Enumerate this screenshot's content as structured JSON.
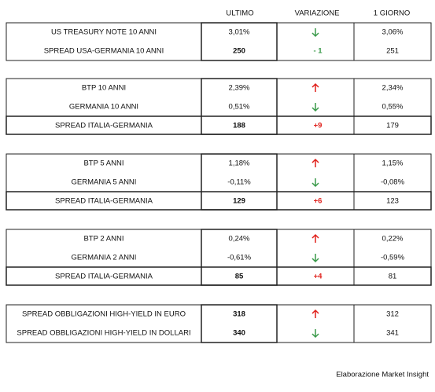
{
  "header": {
    "ultimo": "ULTIMO",
    "variazione": "VARIAZIONE",
    "giorno": "1 GIORNO"
  },
  "groups": [
    {
      "rows": [
        {
          "label": "US TREASURY NOTE 10 ANNI",
          "ultimo": "3,01%",
          "giorno": "3,06%"
        },
        {
          "label": "SPREAD USA-GERMANIA 10 ANNI",
          "ultimo": "250",
          "variazione": "- 1",
          "giorno": "251"
        }
      ]
    },
    {
      "rows": [
        {
          "label": "BTP 10 ANNI",
          "ultimo": "2,39%",
          "giorno": "2,34%"
        },
        {
          "label": "GERMANIA 10 ANNI",
          "ultimo": "0,51%",
          "giorno": "0,55%"
        },
        {
          "label": "SPREAD ITALIA-GERMANIA",
          "ultimo": "188",
          "variazione": "+9",
          "giorno": "179"
        }
      ]
    },
    {
      "rows": [
        {
          "label": "BTP 5 ANNI",
          "ultimo": "1,18%",
          "giorno": "1,15%"
        },
        {
          "label": "GERMANIA 5 ANNI",
          "ultimo": "-0,11%",
          "giorno": "-0,08%"
        },
        {
          "label": "SPREAD ITALIA-GERMANIA",
          "ultimo": "129",
          "variazione": "+6",
          "giorno": "123"
        }
      ]
    },
    {
      "rows": [
        {
          "label": "BTP 2 ANNI",
          "ultimo": "0,24%",
          "giorno": "0,22%"
        },
        {
          "label": "GERMANIA 2 ANNI",
          "ultimo": "-0,61%",
          "giorno": "-0,59%"
        },
        {
          "label": "SPREAD ITALIA-GERMANIA",
          "ultimo": "85",
          "variazione": "+4",
          "giorno": "81"
        }
      ]
    },
    {
      "rows": [
        {
          "label": "SPREAD OBBLIGAZIONI HIGH-YIELD IN EURO",
          "ultimo": "318",
          "giorno": "312"
        },
        {
          "label": "SPREAD OBBLIGAZIONI HIGH-YIELD IN DOLLARI",
          "ultimo": "340",
          "giorno": "341"
        }
      ]
    }
  ],
  "footer": "Elaborazione Market Insight"
}
